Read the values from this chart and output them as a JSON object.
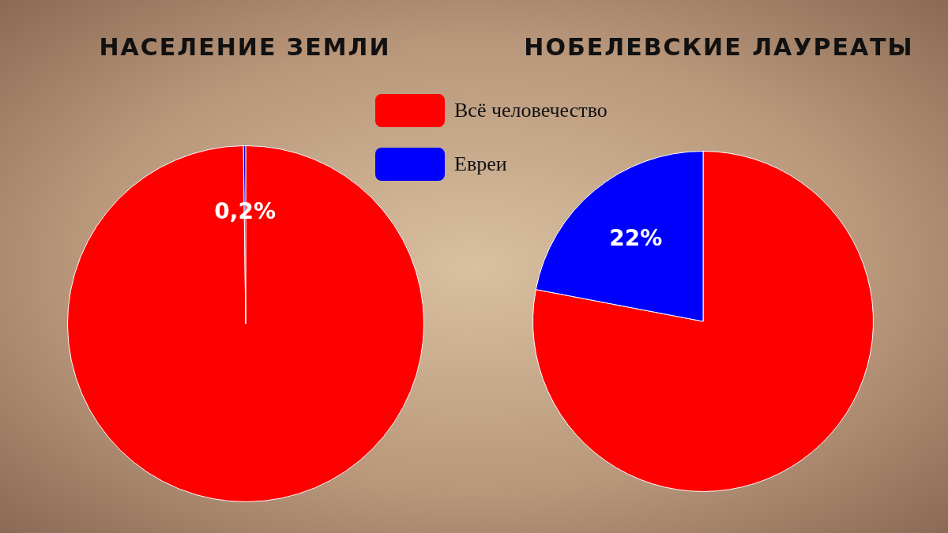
{
  "chart_data": [
    {
      "type": "pie",
      "title": "НАСЕЛЕНИЕ ЗЕМЛИ",
      "categories": [
        "Всё человечество",
        "Евреи"
      ],
      "values": [
        99.8,
        0.2
      ],
      "colors": [
        "#ff0000",
        "#0000ff"
      ],
      "value_labels": [
        null,
        "0,2%"
      ],
      "legend": "top right"
    },
    {
      "type": "pie",
      "title": "НОБЕЛЕВСКИЕ ЛАУРЕАТЫ",
      "categories": [
        null,
        null
      ],
      "values": [
        78,
        22
      ],
      "colors": [
        "#ff0000",
        "#0000ff"
      ],
      "value_labels": [
        null,
        "22%"
      ]
    }
  ]
}
